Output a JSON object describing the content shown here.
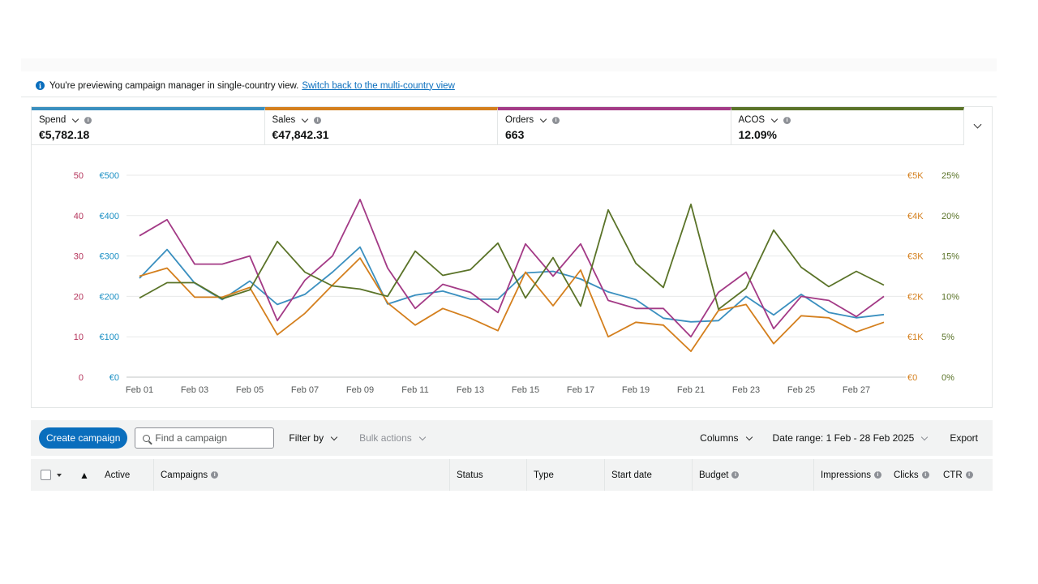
{
  "info": {
    "message": "You're previewing campaign manager in single-country view.",
    "link": "Switch back to the multi-country view"
  },
  "metrics": [
    {
      "label": "Spend",
      "value": "€5,782.18",
      "color": "#3a8fbf"
    },
    {
      "label": "Sales",
      "value": "€47,842.31",
      "color": "#d47f1d"
    },
    {
      "label": "Orders",
      "value": "663",
      "color": "#a33a86"
    },
    {
      "label": "ACOS",
      "value": "12.09%",
      "color": "#5a7328"
    }
  ],
  "chart_data": {
    "type": "line",
    "x": [
      "Feb 01",
      "Feb 02",
      "Feb 03",
      "Feb 04",
      "Feb 05",
      "Feb 06",
      "Feb 07",
      "Feb 08",
      "Feb 09",
      "Feb 10",
      "Feb 11",
      "Feb 12",
      "Feb 13",
      "Feb 14",
      "Feb 15",
      "Feb 16",
      "Feb 17",
      "Feb 18",
      "Feb 19",
      "Feb 20",
      "Feb 21",
      "Feb 22",
      "Feb 23",
      "Feb 24",
      "Feb 25",
      "Feb 26",
      "Feb 27",
      "Feb 28"
    ],
    "x_tick_labels": [
      "Feb 01",
      "Feb 03",
      "Feb 05",
      "Feb 07",
      "Feb 09",
      "Feb 11",
      "Feb 13",
      "Feb 15",
      "Feb 17",
      "Feb 19",
      "Feb 21",
      "Feb 23",
      "Feb 25",
      "Feb 27"
    ],
    "axes": {
      "orders": {
        "ticks": [
          "0",
          "10",
          "20",
          "30",
          "40",
          "50"
        ],
        "range": [
          0,
          50
        ],
        "color": "#b5355c"
      },
      "spend": {
        "ticks": [
          "€0",
          "€100",
          "€200",
          "€300",
          "€400",
          "€500"
        ],
        "range": [
          0,
          500
        ],
        "color": "#1a8fc4"
      },
      "sales": {
        "ticks": [
          "€0",
          "€1K",
          "€2K",
          "€3K",
          "€4K",
          "€5K"
        ],
        "range": [
          0,
          5000
        ],
        "color": "#d47f1d"
      },
      "acos": {
        "ticks": [
          "0%",
          "5%",
          "10%",
          "15%",
          "20%",
          "25%"
        ],
        "range": [
          0,
          25
        ],
        "color": "#5a7328"
      }
    },
    "grid": true,
    "series": [
      {
        "name": "Spend",
        "axis": "spend",
        "color": "#3a8fbf",
        "values": [
          245,
          316,
          233,
          192,
          238,
          180,
          205,
          260,
          322,
          181,
          203,
          213,
          193,
          193,
          258,
          262,
          243,
          211,
          192,
          146,
          137,
          140,
          200,
          154,
          205,
          160,
          147,
          155
        ]
      },
      {
        "name": "Sales",
        "axis": "sales",
        "color": "#d47f1d",
        "values": [
          2500,
          2700,
          1980,
          1980,
          2220,
          1050,
          1580,
          2280,
          2950,
          1840,
          1290,
          1700,
          1460,
          1150,
          2600,
          1770,
          2650,
          1000,
          1360,
          1290,
          640,
          1650,
          1800,
          830,
          1520,
          1470,
          1120,
          1360
        ]
      },
      {
        "name": "Orders",
        "axis": "orders",
        "color": "#a33a86",
        "values": [
          35,
          39,
          28,
          28,
          30,
          14,
          24,
          30,
          44,
          27,
          17,
          23,
          21,
          16,
          33,
          25,
          33,
          19,
          17,
          17,
          10,
          21,
          26,
          12,
          20,
          19,
          15,
          20
        ]
      },
      {
        "name": "ACOS",
        "axis": "acos",
        "color": "#5a7328",
        "values": [
          9.8,
          11.7,
          11.7,
          9.7,
          10.8,
          16.8,
          13.0,
          11.3,
          10.9,
          10.0,
          15.6,
          12.6,
          13.3,
          16.6,
          9.8,
          14.8,
          8.8,
          20.7,
          14.1,
          11.1,
          21.4,
          8.4,
          11.0,
          18.2,
          13.6,
          11.2,
          13.1,
          11.4
        ]
      }
    ]
  },
  "toolbar": {
    "create": "Create campaign",
    "search_placeholder": "Find a campaign",
    "filter": "Filter by",
    "bulk": "Bulk actions",
    "columns": "Columns",
    "date_range": "Date range: 1 Feb - 28 Feb 2025",
    "export": "Export"
  },
  "table": {
    "headers": {
      "active": "Active",
      "campaigns": "Campaigns",
      "status": "Status",
      "type": "Type",
      "start_date": "Start date",
      "budget": "Budget",
      "impressions": "Impressions",
      "clicks": "Clicks",
      "ctr": "CTR"
    },
    "warning_icon": "warning-icon"
  }
}
